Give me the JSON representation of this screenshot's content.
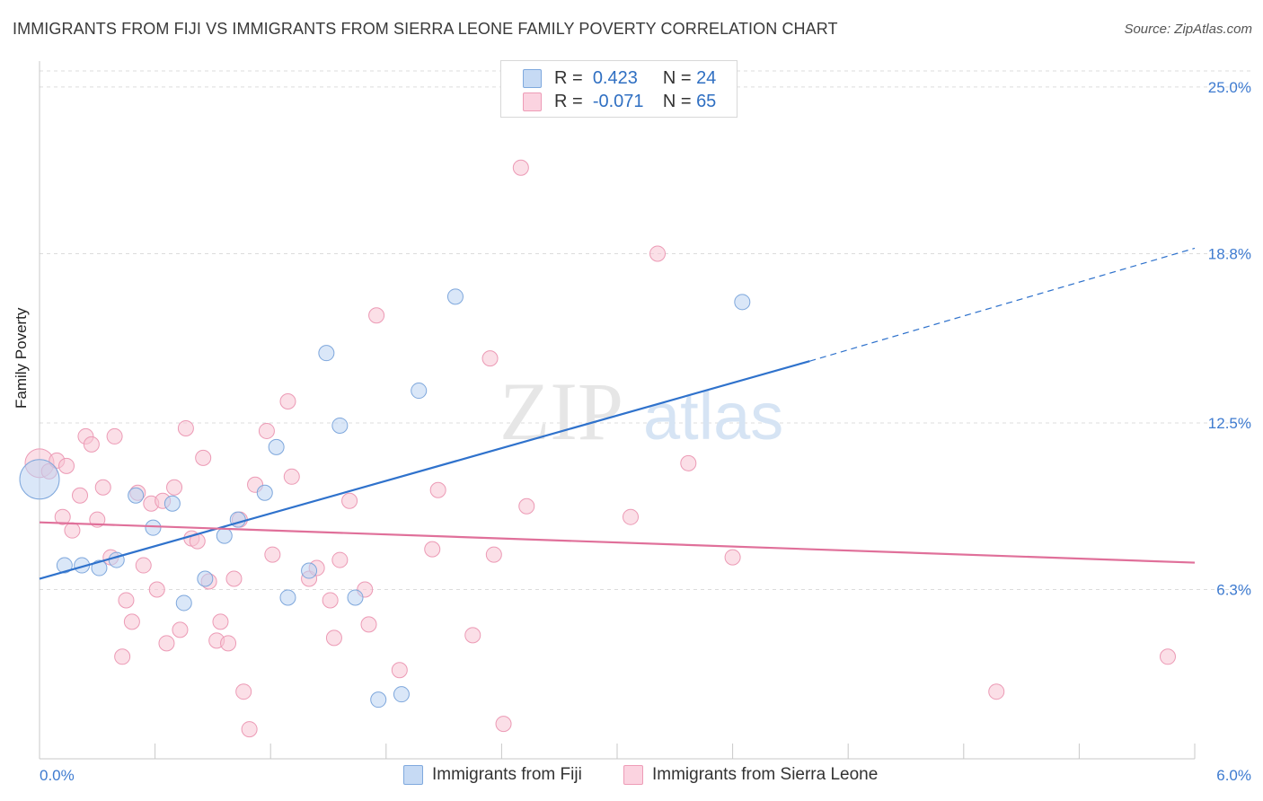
{
  "header": {
    "title": "IMMIGRANTS FROM FIJI VS IMMIGRANTS FROM SIERRA LEONE FAMILY POVERTY CORRELATION CHART",
    "source": "Source: ZipAtlas.com"
  },
  "watermark": {
    "zip": "ZIP",
    "atlas": "atlas"
  },
  "stats": {
    "r_label": "R =",
    "n_label": "N =",
    "rows": [
      {
        "r": "0.423",
        "n": "24",
        "color": "#a9c8ee"
      },
      {
        "r": "-0.071",
        "n": "65",
        "color": "#f5b8cb"
      }
    ]
  },
  "legend": {
    "items": [
      {
        "label": "Immigrants from Fiji",
        "color": "#a9c8ee"
      },
      {
        "label": "Immigrants from Sierra Leone",
        "color": "#f5b8cb"
      }
    ]
  },
  "chart_data": {
    "type": "scatter",
    "title": "IMMIGRANTS FROM FIJI VS IMMIGRANTS FROM SIERRA LEONE FAMILY POVERTY CORRELATION CHART",
    "xlabel": "",
    "ylabel": "Family Poverty",
    "xlim": [
      0,
      6.0
    ],
    "ylim": [
      0,
      25.9
    ],
    "x_tick_labels": [
      "0.0%",
      "6.0%"
    ],
    "y_ticks": [
      6.3,
      12.5,
      18.8,
      25.0
    ],
    "y_tick_labels": [
      "6.3%",
      "12.5%",
      "18.8%",
      "25.0%"
    ],
    "grid": true,
    "legend_position": "bottom-center",
    "series": [
      {
        "name": "Immigrants from Fiji",
        "color": "#a9c8ee",
        "line_color": "#2f72cc",
        "points": [
          {
            "x": 0.0,
            "y": 10.4,
            "s": 22
          },
          {
            "x": 0.13,
            "y": 7.2
          },
          {
            "x": 0.22,
            "y": 7.2
          },
          {
            "x": 0.31,
            "y": 7.1
          },
          {
            "x": 0.4,
            "y": 7.4
          },
          {
            "x": 0.5,
            "y": 9.8
          },
          {
            "x": 0.59,
            "y": 8.6
          },
          {
            "x": 0.69,
            "y": 9.5
          },
          {
            "x": 0.75,
            "y": 5.8
          },
          {
            "x": 0.86,
            "y": 6.7
          },
          {
            "x": 0.96,
            "y": 8.3
          },
          {
            "x": 1.03,
            "y": 8.9
          },
          {
            "x": 1.17,
            "y": 9.9
          },
          {
            "x": 1.23,
            "y": 11.6
          },
          {
            "x": 1.29,
            "y": 6.0
          },
          {
            "x": 1.4,
            "y": 7.0
          },
          {
            "x": 1.49,
            "y": 15.1
          },
          {
            "x": 1.56,
            "y": 12.4
          },
          {
            "x": 1.64,
            "y": 6.0
          },
          {
            "x": 1.76,
            "y": 2.2
          },
          {
            "x": 1.88,
            "y": 2.4
          },
          {
            "x": 1.97,
            "y": 13.7
          },
          {
            "x": 2.16,
            "y": 17.2
          },
          {
            "x": 3.65,
            "y": 17.0
          }
        ],
        "trend": {
          "x": [
            0,
            4.0
          ],
          "y": [
            6.7,
            14.8
          ],
          "dashed_to": [
            6.0,
            19.0
          ]
        }
      },
      {
        "name": "Immigrants from Sierra Leone",
        "color": "#f5b8cb",
        "line_color": "#e0709a",
        "points": [
          {
            "x": 0.0,
            "y": 11.0,
            "s": 16
          },
          {
            "x": 0.05,
            "y": 10.7
          },
          {
            "x": 0.09,
            "y": 11.1
          },
          {
            "x": 0.12,
            "y": 9.0
          },
          {
            "x": 0.14,
            "y": 10.9
          },
          {
            "x": 0.17,
            "y": 8.5
          },
          {
            "x": 0.21,
            "y": 9.8
          },
          {
            "x": 0.24,
            "y": 12.0
          },
          {
            "x": 0.27,
            "y": 11.7
          },
          {
            "x": 0.3,
            "y": 8.9
          },
          {
            "x": 0.33,
            "y": 10.1
          },
          {
            "x": 0.37,
            "y": 7.5
          },
          {
            "x": 0.39,
            "y": 12.0
          },
          {
            "x": 0.43,
            "y": 3.8
          },
          {
            "x": 0.45,
            "y": 5.9
          },
          {
            "x": 0.48,
            "y": 5.1
          },
          {
            "x": 0.51,
            "y": 9.9
          },
          {
            "x": 0.54,
            "y": 7.2
          },
          {
            "x": 0.58,
            "y": 9.5
          },
          {
            "x": 0.61,
            "y": 6.3
          },
          {
            "x": 0.64,
            "y": 9.6
          },
          {
            "x": 0.66,
            "y": 4.3
          },
          {
            "x": 0.7,
            "y": 10.1
          },
          {
            "x": 0.73,
            "y": 4.8
          },
          {
            "x": 0.76,
            "y": 12.3
          },
          {
            "x": 0.79,
            "y": 8.2
          },
          {
            "x": 0.82,
            "y": 8.1
          },
          {
            "x": 0.85,
            "y": 11.2
          },
          {
            "x": 0.88,
            "y": 6.6
          },
          {
            "x": 0.92,
            "y": 4.4
          },
          {
            "x": 0.94,
            "y": 5.1
          },
          {
            "x": 0.98,
            "y": 4.3
          },
          {
            "x": 1.01,
            "y": 6.7
          },
          {
            "x": 1.04,
            "y": 8.9
          },
          {
            "x": 1.06,
            "y": 2.5
          },
          {
            "x": 1.09,
            "y": 1.1
          },
          {
            "x": 1.12,
            "y": 10.2
          },
          {
            "x": 1.18,
            "y": 12.2
          },
          {
            "x": 1.21,
            "y": 7.6
          },
          {
            "x": 1.29,
            "y": 13.3
          },
          {
            "x": 1.31,
            "y": 10.5
          },
          {
            "x": 1.4,
            "y": 6.7
          },
          {
            "x": 1.44,
            "y": 7.1
          },
          {
            "x": 1.51,
            "y": 5.9
          },
          {
            "x": 1.53,
            "y": 4.5
          },
          {
            "x": 1.56,
            "y": 7.4
          },
          {
            "x": 1.61,
            "y": 9.6
          },
          {
            "x": 1.69,
            "y": 6.3
          },
          {
            "x": 1.71,
            "y": 5.0
          },
          {
            "x": 1.75,
            "y": 16.5
          },
          {
            "x": 1.87,
            "y": 3.3
          },
          {
            "x": 2.04,
            "y": 7.8
          },
          {
            "x": 2.07,
            "y": 10.0
          },
          {
            "x": 2.25,
            "y": 4.6
          },
          {
            "x": 2.34,
            "y": 14.9
          },
          {
            "x": 2.36,
            "y": 7.6
          },
          {
            "x": 2.41,
            "y": 1.3
          },
          {
            "x": 2.5,
            "y": 22.0
          },
          {
            "x": 2.53,
            "y": 9.4
          },
          {
            "x": 3.07,
            "y": 9.0
          },
          {
            "x": 3.21,
            "y": 18.8
          },
          {
            "x": 3.37,
            "y": 11.0
          },
          {
            "x": 3.6,
            "y": 7.5
          },
          {
            "x": 4.97,
            "y": 2.5
          },
          {
            "x": 5.86,
            "y": 3.8
          }
        ],
        "trend": {
          "x": [
            0,
            6.0
          ],
          "y": [
            8.8,
            7.3
          ]
        }
      }
    ]
  }
}
